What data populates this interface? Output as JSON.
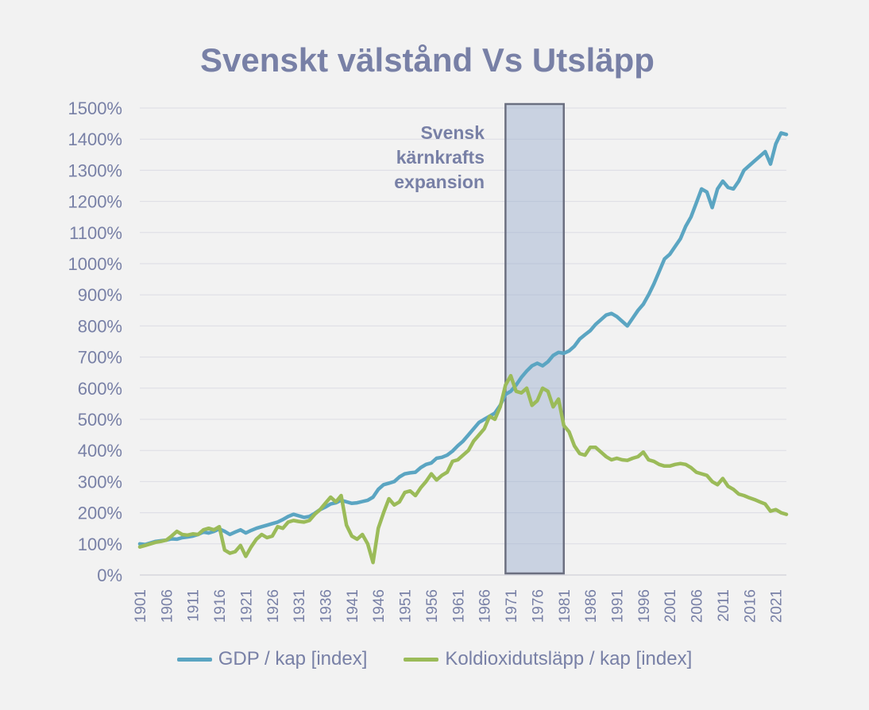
{
  "chart_data": {
    "type": "line",
    "title": "Svenskt välstånd Vs Utsläpp",
    "xlabel": "",
    "ylabel": "",
    "x_range": [
      1901,
      2023
    ],
    "ylim": [
      0,
      1500
    ],
    "y_ticks": [
      "0%",
      "100%",
      "200%",
      "300%",
      "400%",
      "500%",
      "600%",
      "700%",
      "800%",
      "900%",
      "1000%",
      "1100%",
      "1200%",
      "1300%",
      "1400%",
      "1500%"
    ],
    "x_ticks": [
      "1901",
      "1906",
      "1911",
      "1916",
      "1921",
      "1926",
      "1931",
      "1936",
      "1941",
      "1946",
      "1951",
      "1956",
      "1961",
      "1966",
      "1971",
      "1976",
      "1981",
      "1986",
      "1991",
      "1996",
      "2001",
      "2006",
      "2011",
      "2016",
      "2021"
    ],
    "grid": "horizontal",
    "legend_position": "bottom",
    "highlight_band": {
      "x_start": 1970,
      "x_end": 1981,
      "label_lines": [
        "Svensk",
        "kärnkrafts",
        "expansion"
      ]
    },
    "series": [
      {
        "name": "GDP / kap [index]",
        "color": "#5ba5c2",
        "points": [
          [
            1901,
            100
          ],
          [
            1902,
            98
          ],
          [
            1903,
            103
          ],
          [
            1904,
            108
          ],
          [
            1905,
            110
          ],
          [
            1906,
            112
          ],
          [
            1907,
            116
          ],
          [
            1908,
            115
          ],
          [
            1909,
            120
          ],
          [
            1910,
            122
          ],
          [
            1911,
            125
          ],
          [
            1912,
            130
          ],
          [
            1913,
            138
          ],
          [
            1914,
            135
          ],
          [
            1915,
            140
          ],
          [
            1916,
            148
          ],
          [
            1917,
            140
          ],
          [
            1918,
            130
          ],
          [
            1919,
            138
          ],
          [
            1920,
            145
          ],
          [
            1921,
            135
          ],
          [
            1922,
            143
          ],
          [
            1923,
            150
          ],
          [
            1924,
            155
          ],
          [
            1925,
            160
          ],
          [
            1926,
            165
          ],
          [
            1927,
            170
          ],
          [
            1928,
            178
          ],
          [
            1929,
            188
          ],
          [
            1930,
            195
          ],
          [
            1931,
            190
          ],
          [
            1932,
            185
          ],
          [
            1933,
            188
          ],
          [
            1934,
            198
          ],
          [
            1935,
            210
          ],
          [
            1936,
            218
          ],
          [
            1937,
            228
          ],
          [
            1938,
            232
          ],
          [
            1939,
            240
          ],
          [
            1940,
            235
          ],
          [
            1941,
            230
          ],
          [
            1942,
            232
          ],
          [
            1943,
            236
          ],
          [
            1944,
            240
          ],
          [
            1945,
            250
          ],
          [
            1946,
            275
          ],
          [
            1947,
            290
          ],
          [
            1948,
            295
          ],
          [
            1949,
            300
          ],
          [
            1950,
            315
          ],
          [
            1951,
            325
          ],
          [
            1952,
            328
          ],
          [
            1953,
            330
          ],
          [
            1954,
            345
          ],
          [
            1955,
            355
          ],
          [
            1956,
            360
          ],
          [
            1957,
            375
          ],
          [
            1958,
            378
          ],
          [
            1959,
            385
          ],
          [
            1960,
            398
          ],
          [
            1961,
            415
          ],
          [
            1962,
            430
          ],
          [
            1963,
            450
          ],
          [
            1964,
            470
          ],
          [
            1965,
            490
          ],
          [
            1966,
            500
          ],
          [
            1967,
            510
          ],
          [
            1968,
            520
          ],
          [
            1969,
            545
          ],
          [
            1970,
            580
          ],
          [
            1971,
            590
          ],
          [
            1972,
            610
          ],
          [
            1973,
            635
          ],
          [
            1974,
            655
          ],
          [
            1975,
            672
          ],
          [
            1976,
            680
          ],
          [
            1977,
            672
          ],
          [
            1978,
            685
          ],
          [
            1979,
            705
          ],
          [
            1980,
            715
          ],
          [
            1981,
            712
          ],
          [
            1982,
            720
          ],
          [
            1983,
            735
          ],
          [
            1984,
            758
          ],
          [
            1985,
            772
          ],
          [
            1986,
            785
          ],
          [
            1987,
            805
          ],
          [
            1988,
            820
          ],
          [
            1989,
            835
          ],
          [
            1990,
            840
          ],
          [
            1991,
            830
          ],
          [
            1992,
            815
          ],
          [
            1993,
            800
          ],
          [
            1994,
            825
          ],
          [
            1995,
            850
          ],
          [
            1996,
            870
          ],
          [
            1997,
            900
          ],
          [
            1998,
            935
          ],
          [
            1999,
            975
          ],
          [
            2000,
            1015
          ],
          [
            2001,
            1030
          ],
          [
            2002,
            1055
          ],
          [
            2003,
            1080
          ],
          [
            2004,
            1120
          ],
          [
            2005,
            1150
          ],
          [
            2006,
            1195
          ],
          [
            2007,
            1240
          ],
          [
            2008,
            1230
          ],
          [
            2009,
            1180
          ],
          [
            2010,
            1240
          ],
          [
            2011,
            1265
          ],
          [
            2012,
            1245
          ],
          [
            2013,
            1240
          ],
          [
            2014,
            1265
          ],
          [
            2015,
            1300
          ],
          [
            2016,
            1315
          ],
          [
            2017,
            1330
          ],
          [
            2018,
            1345
          ],
          [
            2019,
            1360
          ],
          [
            2020,
            1320
          ],
          [
            2021,
            1385
          ],
          [
            2022,
            1420
          ],
          [
            2023,
            1415
          ]
        ]
      },
      {
        "name": "Koldioxidutsläpp / kap [index]",
        "color": "#9bbb59",
        "points": [
          [
            1901,
            90
          ],
          [
            1902,
            95
          ],
          [
            1903,
            100
          ],
          [
            1904,
            105
          ],
          [
            1905,
            108
          ],
          [
            1906,
            112
          ],
          [
            1907,
            125
          ],
          [
            1908,
            140
          ],
          [
            1909,
            130
          ],
          [
            1910,
            128
          ],
          [
            1911,
            132
          ],
          [
            1912,
            130
          ],
          [
            1913,
            145
          ],
          [
            1914,
            150
          ],
          [
            1915,
            145
          ],
          [
            1916,
            155
          ],
          [
            1917,
            80
          ],
          [
            1918,
            70
          ],
          [
            1919,
            75
          ],
          [
            1920,
            95
          ],
          [
            1921,
            60
          ],
          [
            1922,
            90
          ],
          [
            1923,
            115
          ],
          [
            1924,
            130
          ],
          [
            1925,
            120
          ],
          [
            1926,
            125
          ],
          [
            1927,
            155
          ],
          [
            1928,
            150
          ],
          [
            1929,
            170
          ],
          [
            1930,
            175
          ],
          [
            1931,
            172
          ],
          [
            1932,
            170
          ],
          [
            1933,
            175
          ],
          [
            1934,
            195
          ],
          [
            1935,
            210
          ],
          [
            1936,
            230
          ],
          [
            1937,
            250
          ],
          [
            1938,
            235
          ],
          [
            1939,
            255
          ],
          [
            1940,
            160
          ],
          [
            1941,
            125
          ],
          [
            1942,
            115
          ],
          [
            1943,
            130
          ],
          [
            1944,
            100
          ],
          [
            1945,
            40
          ],
          [
            1946,
            150
          ],
          [
            1947,
            200
          ],
          [
            1948,
            245
          ],
          [
            1949,
            225
          ],
          [
            1950,
            235
          ],
          [
            1951,
            265
          ],
          [
            1952,
            270
          ],
          [
            1953,
            255
          ],
          [
            1954,
            280
          ],
          [
            1955,
            300
          ],
          [
            1956,
            325
          ],
          [
            1957,
            305
          ],
          [
            1958,
            320
          ],
          [
            1959,
            330
          ],
          [
            1960,
            365
          ],
          [
            1961,
            370
          ],
          [
            1962,
            385
          ],
          [
            1963,
            400
          ],
          [
            1964,
            430
          ],
          [
            1965,
            450
          ],
          [
            1966,
            470
          ],
          [
            1967,
            510
          ],
          [
            1968,
            500
          ],
          [
            1969,
            540
          ],
          [
            1970,
            610
          ],
          [
            1971,
            640
          ],
          [
            1972,
            590
          ],
          [
            1973,
            585
          ],
          [
            1974,
            600
          ],
          [
            1975,
            545
          ],
          [
            1976,
            560
          ],
          [
            1977,
            600
          ],
          [
            1978,
            590
          ],
          [
            1979,
            540
          ],
          [
            1980,
            565
          ],
          [
            1981,
            480
          ],
          [
            1982,
            460
          ],
          [
            1983,
            415
          ],
          [
            1984,
            390
          ],
          [
            1985,
            385
          ],
          [
            1986,
            410
          ],
          [
            1987,
            410
          ],
          [
            1988,
            395
          ],
          [
            1989,
            380
          ],
          [
            1990,
            370
          ],
          [
            1991,
            375
          ],
          [
            1992,
            370
          ],
          [
            1993,
            368
          ],
          [
            1994,
            375
          ],
          [
            1995,
            380
          ],
          [
            1996,
            395
          ],
          [
            1997,
            370
          ],
          [
            1998,
            365
          ],
          [
            1999,
            355
          ],
          [
            2000,
            350
          ],
          [
            2001,
            350
          ],
          [
            2002,
            355
          ],
          [
            2003,
            358
          ],
          [
            2004,
            355
          ],
          [
            2005,
            345
          ],
          [
            2006,
            330
          ],
          [
            2007,
            325
          ],
          [
            2008,
            320
          ],
          [
            2009,
            300
          ],
          [
            2010,
            290
          ],
          [
            2011,
            310
          ],
          [
            2012,
            285
          ],
          [
            2013,
            275
          ],
          [
            2014,
            260
          ],
          [
            2015,
            255
          ],
          [
            2016,
            248
          ],
          [
            2017,
            242
          ],
          [
            2018,
            235
          ],
          [
            2019,
            228
          ],
          [
            2020,
            205
          ],
          [
            2021,
            210
          ],
          [
            2022,
            200
          ],
          [
            2023,
            195
          ]
        ]
      }
    ]
  }
}
